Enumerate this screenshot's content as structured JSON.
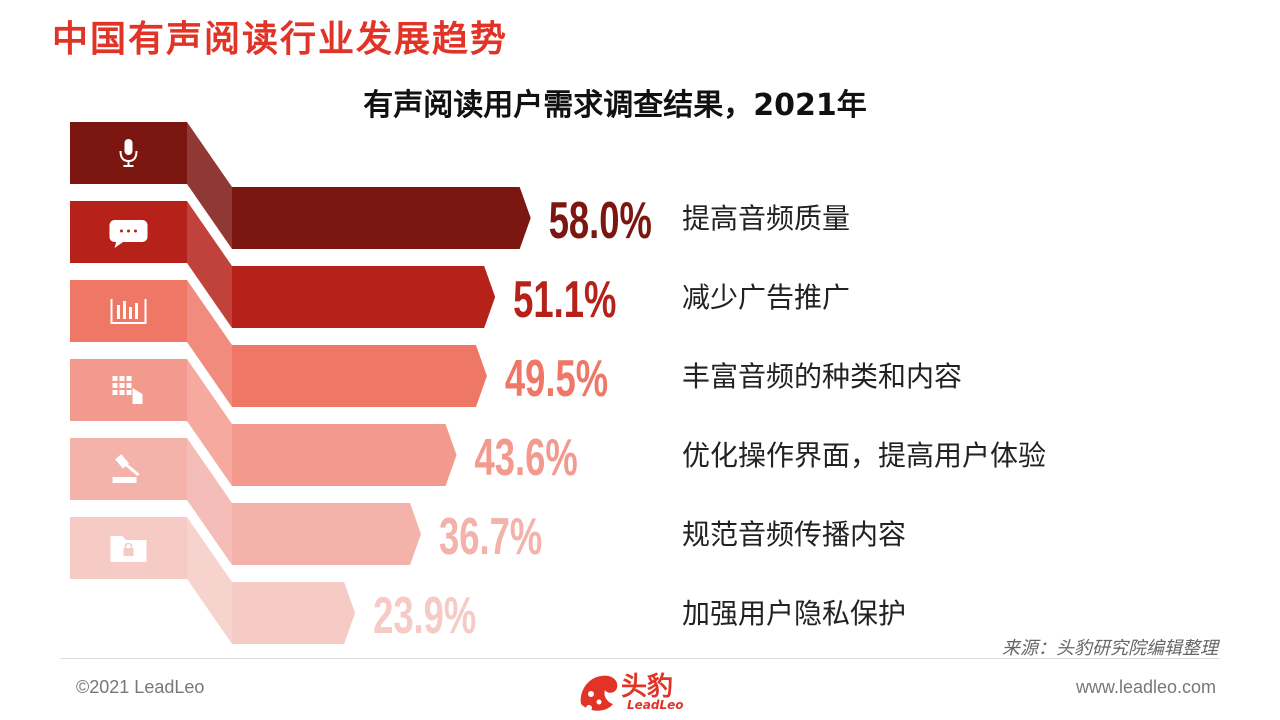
{
  "page_title": "中国有声阅读行业发展趋势",
  "chart_data": {
    "type": "bar",
    "title": "有声阅读用户需求调查结果，2021年",
    "categories": [
      "提高音频质量",
      "减少广告推广",
      "丰富音频的种类和内容",
      "优化操作界面，提高用户体验",
      "规范音频传播内容",
      "加强用户隐私保护"
    ],
    "values": [
      58.0,
      51.1,
      49.5,
      43.6,
      36.7,
      23.9
    ],
    "value_labels": [
      "58.0%",
      "51.1%",
      "49.5%",
      "43.6%",
      "36.7%",
      "23.9%"
    ],
    "unit": "%",
    "xlim": [
      0,
      60
    ],
    "colors": [
      "#7c1610",
      "#b62119",
      "#ee7766",
      "#f39a8e",
      "#f3b2aa",
      "#f6cbc5"
    ],
    "icons": [
      "microphone-icon",
      "chat-bubble-icon",
      "bar-chart-icon",
      "keypad-touch-icon",
      "gavel-icon",
      "locked-folder-icon"
    ]
  },
  "source": "来源：头豹研究院编辑整理",
  "footer": {
    "copyright": "©2021 LeadLeo",
    "website": "www.leadleo.com",
    "logo_text": "头豹",
    "logo_sub": "LeadLeo"
  }
}
